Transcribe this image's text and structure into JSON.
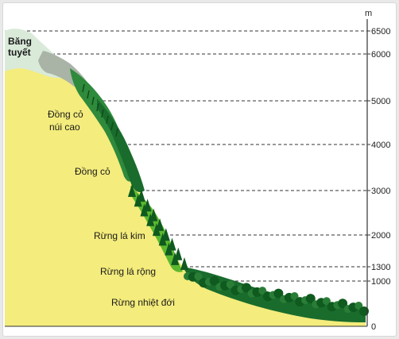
{
  "diagram": {
    "unit": "m",
    "ticks": [
      "6500",
      "6000",
      "5000",
      "4000",
      "3000",
      "2000",
      "1300",
      "1000",
      "0"
    ],
    "zones": {
      "snow": "Băng tuyết",
      "alpine_meadow_line1": "Đồng cỏ",
      "alpine_meadow_line2": "núi cao",
      "meadow": "Đồng cỏ",
      "conifer": "Rừng lá kim",
      "broadleaf": "Rừng lá rộng",
      "tropical": "Rừng nhiệt đới"
    },
    "colors": {
      "ground": "#f4ec7c",
      "snow": "#d9ead9",
      "rock_gray": "#a9b3a6",
      "meadow_green": "#2f8a3c",
      "dark_green": "#1a6c2c",
      "conifer_green": "#5cb82f",
      "tree_dark": "#0f5a1f",
      "axis": "#333333"
    }
  }
}
